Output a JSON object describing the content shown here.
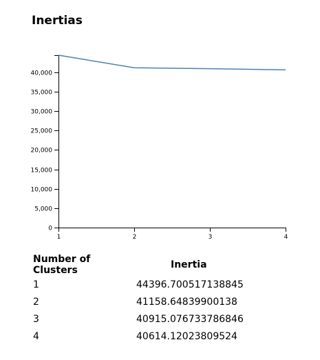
{
  "title": "Inertias",
  "chart_data": {
    "type": "line",
    "x": [
      1,
      2,
      3,
      4
    ],
    "values": [
      44396.700517138845,
      41158.64839900138,
      40915.076733786846,
      40614.12023809524
    ],
    "xlim": [
      1,
      4
    ],
    "ylim": [
      0,
      44396.700517138845
    ],
    "xticks": [
      "1",
      "2",
      "3",
      "4"
    ],
    "yticks": [
      0,
      5000,
      10000,
      15000,
      20000,
      25000,
      30000,
      35000,
      40000
    ],
    "ytick_labels": [
      "0",
      "5,000",
      "10,000",
      "15,000",
      "20,000",
      "25,000",
      "30,000",
      "35,000",
      "40,000"
    ],
    "line_color": "#4682b4",
    "grid": false
  },
  "table": {
    "headers": [
      "Number of Clusters",
      "Inertia"
    ],
    "rows": [
      [
        "1",
        "44396.700517138845"
      ],
      [
        "2",
        "41158.64839900138"
      ],
      [
        "3",
        "40915.076733786846"
      ],
      [
        "4",
        "40614.12023809524"
      ]
    ]
  }
}
